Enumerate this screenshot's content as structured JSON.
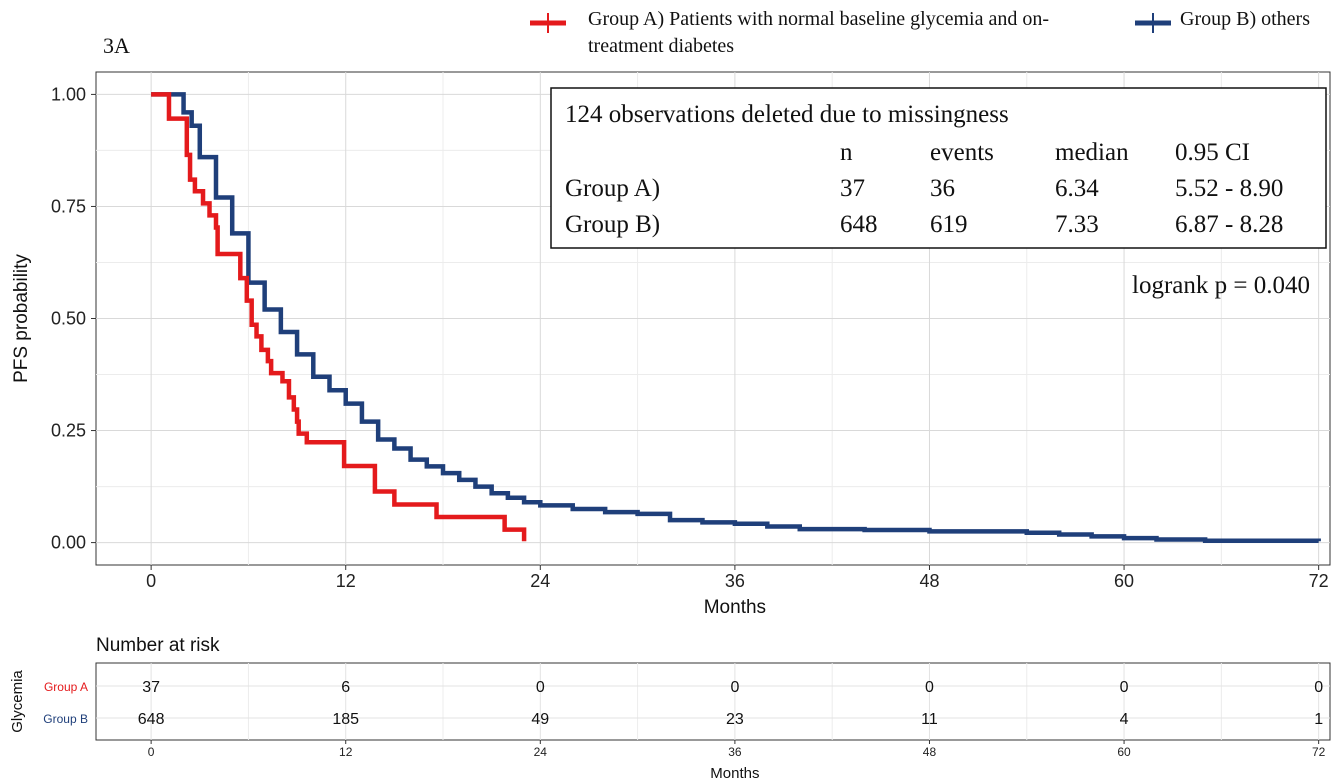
{
  "chart_data": [
    {
      "type": "step",
      "title": "3A",
      "x_label": "Months",
      "y_label": "PFS probability",
      "xlim": [
        -3.4,
        72.7
      ],
      "ylim": [
        -0.05,
        1.05
      ],
      "xticks": [
        0,
        12,
        24,
        36,
        48,
        60,
        72
      ],
      "yticks": [
        {
          "value": 0,
          "label": "0.00"
        },
        0.25,
        {
          "value": 0.5,
          "label": "0.50"
        },
        0.75,
        {
          "value": 1,
          "label": "1.00"
        }
      ],
      "grid": true,
      "legend": "top",
      "series": [
        {
          "name": "Group A) Patients with normal baseline glycemia and on-treatment diabetes",
          "color": "#e41a1c",
          "x": [
            0,
            1.1,
            2.2,
            2.4,
            2.7,
            3.2,
            3.6,
            4.0,
            4.1,
            5.5,
            5.9,
            6.2,
            6.5,
            6.8,
            7.2,
            7.4,
            8.1,
            8.5,
            8.8,
            9.0,
            9.1,
            9.6,
            11.9,
            13.8,
            15.0,
            17.6,
            21.8,
            23.0
          ],
          "values": [
            1.0,
            0.946,
            0.865,
            0.81,
            0.784,
            0.757,
            0.73,
            0.703,
            0.644,
            0.59,
            0.54,
            0.486,
            0.46,
            0.43,
            0.405,
            0.378,
            0.36,
            0.324,
            0.297,
            0.27,
            0.243,
            0.224,
            0.171,
            0.114,
            0.085,
            0.057,
            0.029,
            0.003
          ]
        },
        {
          "name": "Group B) others",
          "color": "#1f3f7a",
          "x": [
            0,
            1.2,
            2,
            2.5,
            3,
            4,
            5,
            6,
            7,
            8,
            9,
            10,
            11,
            12,
            13,
            14,
            15,
            16,
            17,
            18,
            19,
            20,
            21,
            22,
            23,
            24,
            26,
            28,
            30,
            32,
            34,
            36,
            38,
            40,
            44,
            48,
            54,
            56,
            58,
            60,
            62,
            65,
            72
          ],
          "values": [
            1.0,
            1.0,
            0.96,
            0.93,
            0.86,
            0.77,
            0.69,
            0.58,
            0.52,
            0.47,
            0.42,
            0.37,
            0.34,
            0.31,
            0.27,
            0.23,
            0.21,
            0.185,
            0.17,
            0.155,
            0.14,
            0.125,
            0.11,
            0.1,
            0.09,
            0.083,
            0.075,
            0.068,
            0.064,
            0.05,
            0.045,
            0.042,
            0.036,
            0.03,
            0.028,
            0.025,
            0.022,
            0.018,
            0.014,
            0.01,
            0.007,
            0.004,
            0.003
          ]
        }
      ],
      "annotation": {
        "note": "124 observations deleted due to missingness",
        "columns": [
          "n",
          "events",
          "median",
          "0.95 CI"
        ],
        "rows": [
          [
            "Group A)",
            "37",
            "36",
            "6.34",
            "5.52 - 8.90"
          ],
          [
            "Group B)",
            "648",
            "619",
            "7.33",
            "6.87 - 8.28"
          ]
        ]
      },
      "logrank": "logrank p = 0.040"
    },
    {
      "type": "risk_table",
      "title": "Number at risk",
      "y_label": "Glycemia",
      "x_label": "Months",
      "xlim": [
        -3.4,
        72.7
      ],
      "xticks": [
        0,
        12,
        24,
        36,
        48,
        60,
        72
      ],
      "groups": [
        {
          "name": "Group A",
          "color": "#e41a1c",
          "values": [
            37,
            6,
            0,
            0,
            0,
            0,
            0
          ]
        },
        {
          "name": "Group B",
          "color": "#1f3f7a",
          "values": [
            648,
            185,
            49,
            23,
            11,
            4,
            1
          ]
        }
      ]
    }
  ]
}
